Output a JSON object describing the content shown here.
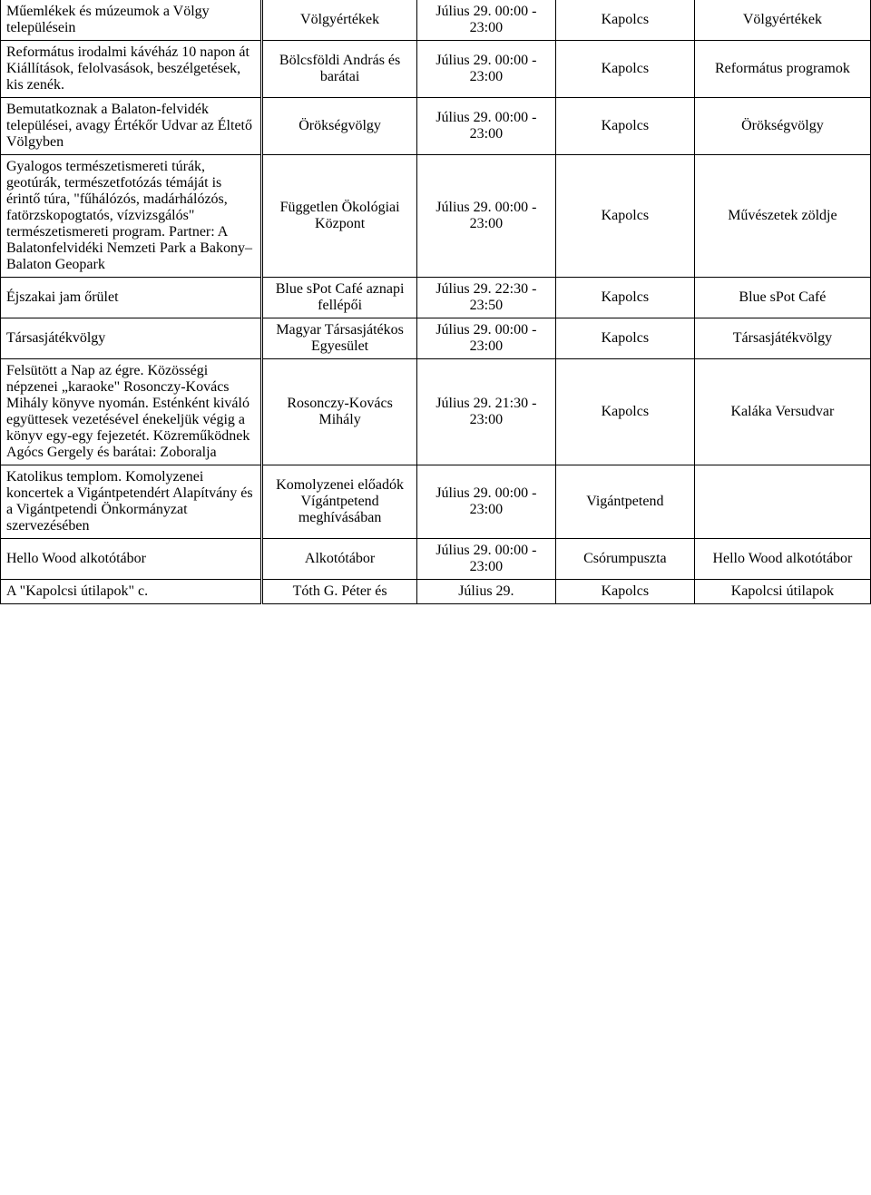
{
  "columns": {
    "event_width": 245,
    "performer_width": 145,
    "time_width": 130,
    "place_width": 130,
    "category_width": 165
  },
  "rows": [
    {
      "event": "Műemlékek és múzeumok a Völgy településein",
      "performer": "Völgyértékek",
      "time": "Július 29. 00:00 - 23:00",
      "place": "Kapolcs",
      "category": "Völgyértékek"
    },
    {
      "event": "Református irodalmi kávéház 10 napon át Kiállítások, felolvasások, beszélgetések, kis zenék.",
      "performer": "Bölcsföldi András és barátai",
      "time": "Július 29. 00:00 - 23:00",
      "place": "Kapolcs",
      "category": "Református programok"
    },
    {
      "event": "Bemutatkoznak a Balaton-felvidék települései, avagy Értékőr Udvar az Éltető Völgyben",
      "performer": "Örökségvölgy",
      "time": "Július 29. 00:00 - 23:00",
      "place": "Kapolcs",
      "category": "Örökségvölgy"
    },
    {
      "event": "Gyalogos természetismereti túrák, geotúrák, természetfotózás témáját is érintő túra, \"fűhálózós, madárhálózós, fatörzskopogtatós, vízvizsgálós\" természetismereti program. Partner: A Balatonfelvidéki Nemzeti Park a Bakony–Balaton Geopark",
      "performer": "Független Ökológiai Központ",
      "time": "Július 29. 00:00 - 23:00",
      "place": "Kapolcs",
      "category": "Művészetek zöldje"
    },
    {
      "event": "Éjszakai jam őrület",
      "performer": "Blue sPot Café aznapi fellépői",
      "time": "Július 29. 22:30 - 23:50",
      "place": "Kapolcs",
      "category": "Blue sPot Café"
    },
    {
      "event": "Társasjátékvölgy",
      "performer": "Magyar Társasjátékos Egyesület",
      "time": "Július 29. 00:00 - 23:00",
      "place": "Kapolcs",
      "category": "Társasjátékvölgy"
    },
    {
      "event": "Felsütött a Nap az égre. Közösségi népzenei „karaoke\" Rosonczy-Kovács Mihály könyve nyomán. Esténként kiváló együttesek vezetésével énekeljük végig a könyv egy-egy fejezetét. Közreműködnek Agócs Gergely és barátai: Zoboralja",
      "performer": "Rosonczy-Kovács Mihály",
      "time": "Július 29. 21:30 - 23:00",
      "place": "Kapolcs",
      "category": "Kaláka Versudvar"
    },
    {
      "event": "Katolikus templom. Komolyzenei koncertek a Vigántpetendért Alapítvány és a Vigántpetendi Önkormányzat szervezésében",
      "performer": "Komolyzenei előadók Vígántpetend meghívásában",
      "time": "Július 29. 00:00 - 23:00",
      "place": "Vigántpetend",
      "category": ""
    },
    {
      "event": "Hello Wood alkotótábor",
      "performer": "Alkotótábor",
      "time": "Július 29. 00:00 - 23:00",
      "place": "Csórumpuszta",
      "category": "Hello Wood alkotótábor"
    },
    {
      "event": "A \"Kapolcsi útilapok\" c.",
      "performer": "Tóth G. Péter és",
      "time": "Július 29.",
      "place": "Kapolcs",
      "category": "Kapolcsi útilapok"
    }
  ]
}
